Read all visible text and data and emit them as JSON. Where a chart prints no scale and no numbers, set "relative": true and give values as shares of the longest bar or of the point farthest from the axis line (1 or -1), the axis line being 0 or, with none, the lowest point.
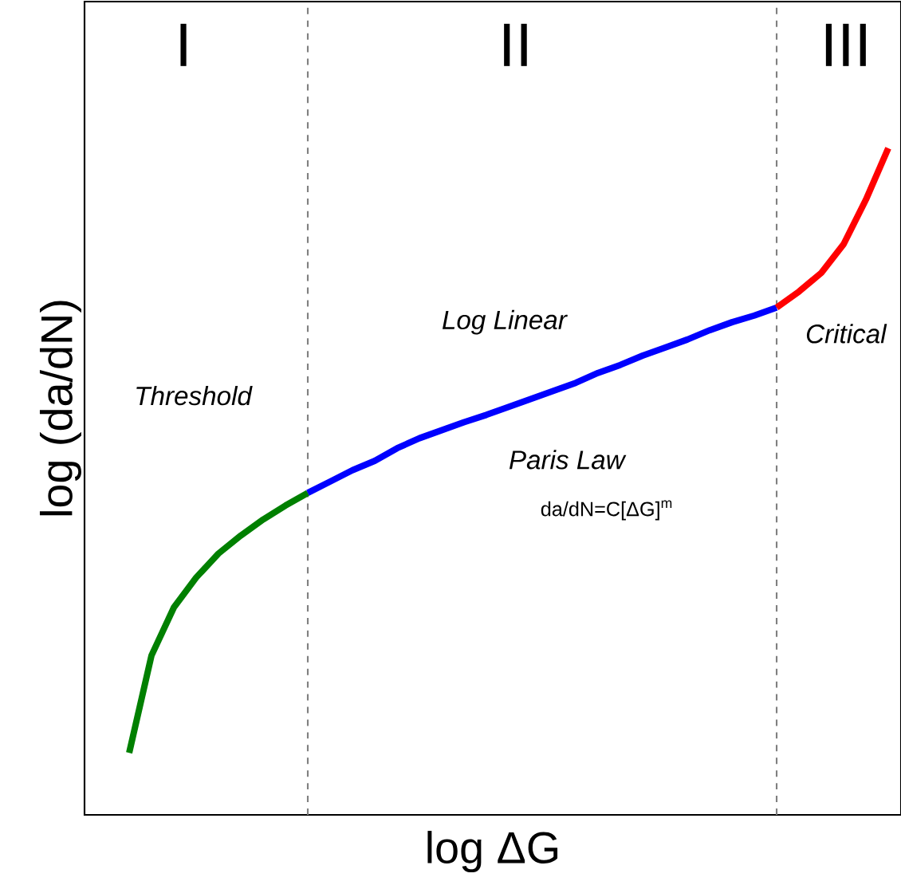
{
  "chart_data": {
    "type": "line",
    "relative": true,
    "xlabel": "log ΔG",
    "ylabel": "log (da/dN)",
    "categories": [
      null,
      null,
      null,
      null,
      null,
      null,
      null,
      null,
      null,
      null,
      null,
      null,
      null,
      null,
      null,
      null,
      null,
      null,
      null,
      null,
      null,
      null,
      null,
      null,
      null,
      null,
      null,
      null,
      null,
      null,
      null,
      null,
      null,
      null,
      null,
      null,
      null
    ],
    "series": [
      {
        "color": "#008000",
        "values": [
          null,
          null,
          0.093,
          0.239,
          0.311,
          0.356,
          0.392,
          0.419,
          0.443,
          0.464,
          0.483,
          null,
          null,
          null,
          null,
          null,
          null,
          null,
          null,
          null,
          null,
          null,
          null,
          null,
          null,
          null,
          null,
          null,
          null,
          null,
          null,
          null,
          null,
          null,
          null,
          null,
          null
        ]
      },
      {
        "color": "#0000ff",
        "values": [
          null,
          null,
          null,
          null,
          null,
          null,
          null,
          null,
          null,
          null,
          0.483,
          0.5,
          0.517,
          0.531,
          0.55,
          0.565,
          0.577,
          0.589,
          0.6,
          0.612,
          0.624,
          0.636,
          0.648,
          0.663,
          0.675,
          0.689,
          0.701,
          0.713,
          0.727,
          0.739,
          0.749,
          0.761,
          null,
          null,
          null,
          null,
          null
        ]
      },
      {
        "color": "#ff0000",
        "values": [
          null,
          null,
          null,
          null,
          null,
          null,
          null,
          null,
          null,
          null,
          null,
          null,
          null,
          null,
          null,
          null,
          null,
          null,
          null,
          null,
          null,
          null,
          null,
          null,
          null,
          null,
          null,
          null,
          null,
          null,
          null,
          0.761,
          0.785,
          0.813,
          0.856,
          0.923,
          1.0
        ]
      }
    ],
    "annotations": [
      "I",
      "II",
      "III",
      "Threshold",
      "Log Linear",
      "Critical",
      "Paris Law",
      "da/dN=C[ΔG]$^{m}$"
    ],
    "legend": false,
    "tick_labels": false,
    "marker": "none",
    "line_style": "solid"
  }
}
